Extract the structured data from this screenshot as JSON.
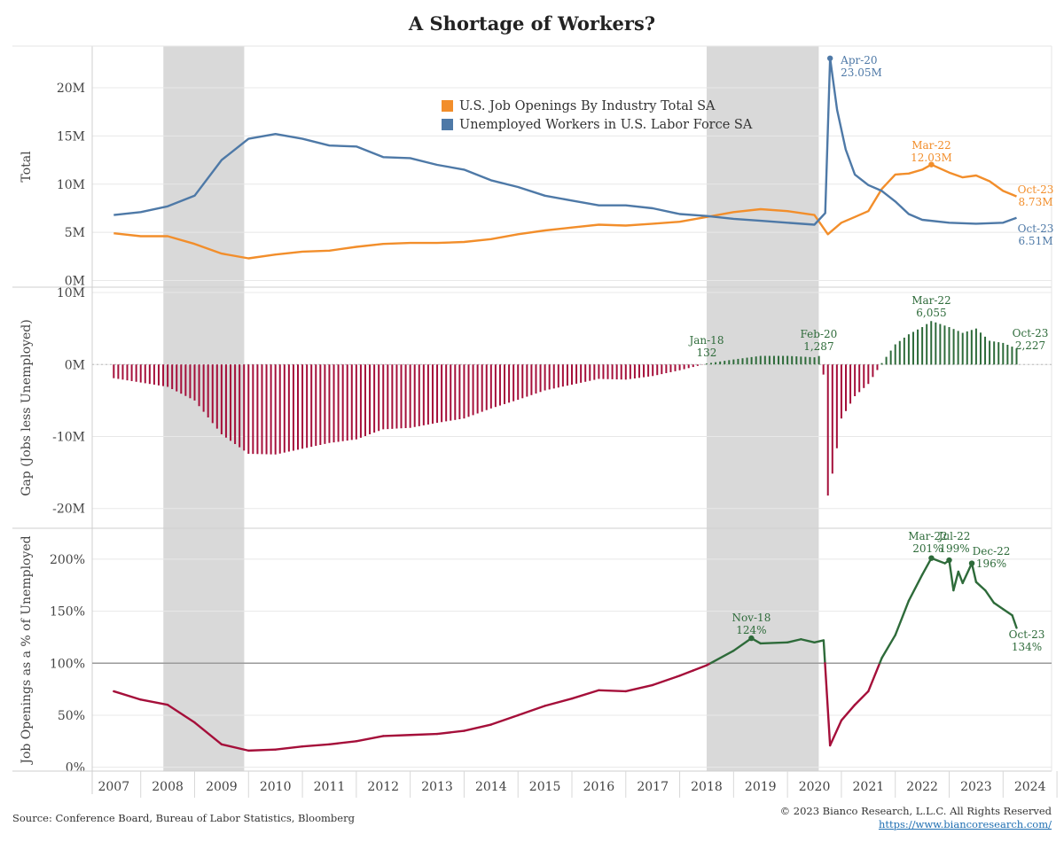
{
  "title": "A Shortage of Workers?",
  "footer": {
    "source": "Source: Conference Board, Bureau of Labor Statistics, Bloomberg",
    "copyright": "© 2023 Bianco Research, L.L.C. All Rights Reserved",
    "website": "https://www.biancoresearch.com/"
  },
  "colors": {
    "openings": "#f28e2b",
    "unemployed": "#4e79a7",
    "positive": "#2e6b3a",
    "negative": "#a50f3a",
    "recession": "#d9d9d9"
  },
  "chart_data": {
    "x_axis": {
      "tick_labels": [
        "2007",
        "2008",
        "2009",
        "2010",
        "2011",
        "2012",
        "2013",
        "2014",
        "2015",
        "2016",
        "2017",
        "2018",
        "2019",
        "2020",
        "2021",
        "2022",
        "2023",
        "2024"
      ],
      "range": [
        2006.6,
        2024.4
      ]
    },
    "recessions": [
      [
        2007.92,
        2009.42
      ],
      [
        2018.0,
        2020.08
      ]
    ],
    "panels": [
      {
        "id": "total",
        "type": "line",
        "ylabel": "Total",
        "ylim": [
          -0.5,
          24.5
        ],
        "ticks": [
          {
            "v": 0,
            "label": "0M"
          },
          {
            "v": 5,
            "label": "5M"
          },
          {
            "v": 10,
            "label": "10M"
          },
          {
            "v": 15,
            "label": "15M"
          },
          {
            "v": 20,
            "label": "20M"
          }
        ],
        "legend": {
          "position": "top-center",
          "entries": [
            "U.S. Job Openings By Industry Total SA",
            "Unemployed Workers in U.S. Labor Force SA"
          ]
        },
        "series": [
          {
            "name": "U.S. Job Openings By Industry Total SA",
            "color_key": "openings",
            "x": [
              2007.0,
              2007.5,
              2008.0,
              2008.5,
              2009.0,
              2009.5,
              2010.0,
              2010.5,
              2011.0,
              2011.5,
              2012.0,
              2012.5,
              2013.0,
              2013.5,
              2014.0,
              2014.5,
              2015.0,
              2015.5,
              2016.0,
              2016.5,
              2017.0,
              2017.5,
              2018.0,
              2018.5,
              2019.0,
              2019.5,
              2020.0,
              2020.25,
              2020.5,
              2020.75,
              2021.0,
              2021.25,
              2021.5,
              2021.75,
              2022.0,
              2022.17,
              2022.5,
              2022.75,
              2023.0,
              2023.25,
              2023.5,
              2023.75
            ],
            "y": [
              4.9,
              4.6,
              4.6,
              3.8,
              2.8,
              2.3,
              2.7,
              3.0,
              3.1,
              3.5,
              3.8,
              3.9,
              3.9,
              4.0,
              4.3,
              4.8,
              5.2,
              5.5,
              5.8,
              5.7,
              5.9,
              6.1,
              6.6,
              7.1,
              7.4,
              7.2,
              6.8,
              4.8,
              6.0,
              6.6,
              7.2,
              9.5,
              11.0,
              11.1,
              11.5,
              12.03,
              11.2,
              10.7,
              10.9,
              10.3,
              9.3,
              8.73
            ]
          },
          {
            "name": "Unemployed Workers in U.S. Labor Force SA",
            "color_key": "unemployed",
            "x": [
              2007.0,
              2007.5,
              2008.0,
              2008.5,
              2009.0,
              2009.5,
              2010.0,
              2010.5,
              2011.0,
              2011.5,
              2012.0,
              2012.5,
              2013.0,
              2013.5,
              2014.0,
              2014.5,
              2015.0,
              2015.5,
              2016.0,
              2016.5,
              2017.0,
              2017.5,
              2018.0,
              2018.5,
              2019.0,
              2019.5,
              2020.0,
              2020.2,
              2020.29,
              2020.42,
              2020.58,
              2020.75,
              2021.0,
              2021.25,
              2021.5,
              2021.75,
              2022.0,
              2022.5,
              2023.0,
              2023.5,
              2023.75
            ],
            "y": [
              6.8,
              7.1,
              7.7,
              8.8,
              12.5,
              14.7,
              15.2,
              14.7,
              14.0,
              13.9,
              12.8,
              12.7,
              12.0,
              11.5,
              10.4,
              9.7,
              8.8,
              8.3,
              7.8,
              7.8,
              7.5,
              6.9,
              6.7,
              6.4,
              6.2,
              6.0,
              5.8,
              7.0,
              23.05,
              17.7,
              13.6,
              11.0,
              9.9,
              9.3,
              8.2,
              6.9,
              6.3,
              6.0,
              5.9,
              6.0,
              6.51
            ]
          }
        ],
        "annotations": [
          {
            "series": 1,
            "x": 2020.29,
            "y": 23.05,
            "lines": [
              "Apr-20",
              "23.05M"
            ]
          },
          {
            "series": 0,
            "x": 2022.17,
            "y": 12.03,
            "lines": [
              "Mar-22",
              "12.03M"
            ]
          },
          {
            "series": 0,
            "x": 2023.75,
            "y": 8.73,
            "lines": [
              "Oct-23",
              "8.73M"
            ]
          },
          {
            "series": 1,
            "x": 2023.75,
            "y": 6.51,
            "lines": [
              "Oct-23",
              "6.51M"
            ]
          }
        ]
      },
      {
        "id": "gap",
        "type": "bar",
        "ylabel": "Gap (Jobs less Unemployed)",
        "ylim": [
          -22.5,
          10.5
        ],
        "ticks": [
          {
            "v": -20,
            "label": "-20M"
          },
          {
            "v": -10,
            "label": "-10M"
          },
          {
            "v": 0,
            "label": "0M"
          },
          {
            "v": 10,
            "label": "10M"
          }
        ],
        "x": [
          2007.0,
          2007.5,
          2008.0,
          2008.5,
          2009.0,
          2009.5,
          2010.0,
          2010.5,
          2011.0,
          2011.5,
          2012.0,
          2012.5,
          2013.0,
          2013.5,
          2014.0,
          2014.5,
          2015.0,
          2015.5,
          2016.0,
          2016.5,
          2017.0,
          2017.5,
          2017.83,
          2018.0,
          2018.5,
          2019.0,
          2019.5,
          2020.0,
          2020.08,
          2020.17,
          2020.25,
          2020.33,
          2020.42,
          2020.5,
          2020.75,
          2021.0,
          2021.25,
          2021.5,
          2021.75,
          2022.0,
          2022.17,
          2022.5,
          2022.75,
          2023.0,
          2023.25,
          2023.5,
          2023.75
        ],
        "values": [
          -1.9,
          -2.5,
          -3.1,
          -5.0,
          -9.7,
          -12.4,
          -12.5,
          -11.7,
          -10.9,
          -10.4,
          -9.0,
          -8.8,
          -8.1,
          -7.5,
          -6.1,
          -4.9,
          -3.6,
          -2.8,
          -2.0,
          -2.1,
          -1.6,
          -0.8,
          -0.2,
          0.132,
          0.7,
          1.2,
          1.2,
          1.0,
          1.287,
          -1.5,
          -18.2,
          -15.3,
          -11.5,
          -7.5,
          -4.4,
          -2.7,
          0.2,
          2.8,
          4.2,
          5.2,
          6.055,
          5.2,
          4.4,
          5.0,
          3.3,
          3.0,
          2.227
        ],
        "annotations": [
          {
            "x": 2018.0,
            "y": 0.132,
            "lines": [
              "Jan-18",
              "132"
            ]
          },
          {
            "x": 2020.08,
            "y": 1.287,
            "lines": [
              "Feb-20",
              "1,287"
            ]
          },
          {
            "x": 2022.17,
            "y": 6.055,
            "lines": [
              "Mar-22",
              "6,055"
            ]
          },
          {
            "x": 2023.75,
            "y": 2.227,
            "lines": [
              "Oct-23",
              "2,227"
            ]
          }
        ]
      },
      {
        "id": "ratio",
        "type": "line",
        "ylabel": "Job Openings as a % of Unemployed",
        "ylim": [
          -2,
          228
        ],
        "ticks": [
          {
            "v": 0,
            "label": "0%"
          },
          {
            "v": 50,
            "label": "50%"
          },
          {
            "v": 100,
            "label": "100%"
          },
          {
            "v": 150,
            "label": "150%"
          },
          {
            "v": 200,
            "label": "200%"
          }
        ],
        "reference_line": 100,
        "series": [
          {
            "name": "",
            "x": [
              2007.0,
              2007.5,
              2008.0,
              2008.5,
              2009.0,
              2009.5,
              2010.0,
              2010.5,
              2011.0,
              2011.5,
              2012.0,
              2012.5,
              2013.0,
              2013.5,
              2014.0,
              2014.5,
              2015.0,
              2015.5,
              2016.0,
              2016.5,
              2017.0,
              2017.5,
              2017.75,
              2018.0,
              2018.5,
              2018.83,
              2019.0,
              2019.5,
              2019.75,
              2020.0,
              2020.17,
              2020.29,
              2020.5,
              2020.75,
              2021.0,
              2021.25,
              2021.5,
              2021.75,
              2022.0,
              2022.17,
              2022.42,
              2022.5,
              2022.58,
              2022.67,
              2022.75,
              2022.92,
              2023.0,
              2023.17,
              2023.33,
              2023.5,
              2023.67,
              2023.75
            ],
            "y": [
              73,
              65,
              60,
              43,
              22,
              16,
              17,
              20,
              22,
              25,
              30,
              31,
              32,
              35,
              41,
              50,
              59,
              66,
              74,
              73,
              79,
              88,
              93,
              98,
              112,
              124,
              119,
              120,
              123,
              120,
              122,
              21,
              45,
              60,
              73,
              105,
              127,
              160,
              185,
              201,
              196,
              199,
              170,
              188,
              177,
              196,
              178,
              170,
              158,
              152,
              146,
              134
            ]
          }
        ],
        "annotations": [
          {
            "x": 2018.83,
            "y": 124,
            "lines": [
              "Nov-18",
              "124%"
            ]
          },
          {
            "x": 2022.17,
            "y": 201,
            "lines": [
              "Mar-22",
              "201%"
            ]
          },
          {
            "x": 2022.5,
            "y": 199,
            "lines": [
              "Jul-22",
              "199%"
            ]
          },
          {
            "x": 2022.92,
            "y": 196,
            "lines": [
              "Dec-22",
              "196%"
            ]
          },
          {
            "x": 2023.75,
            "y": 134,
            "lines": [
              "Oct-23",
              "134%"
            ]
          }
        ]
      }
    ]
  }
}
